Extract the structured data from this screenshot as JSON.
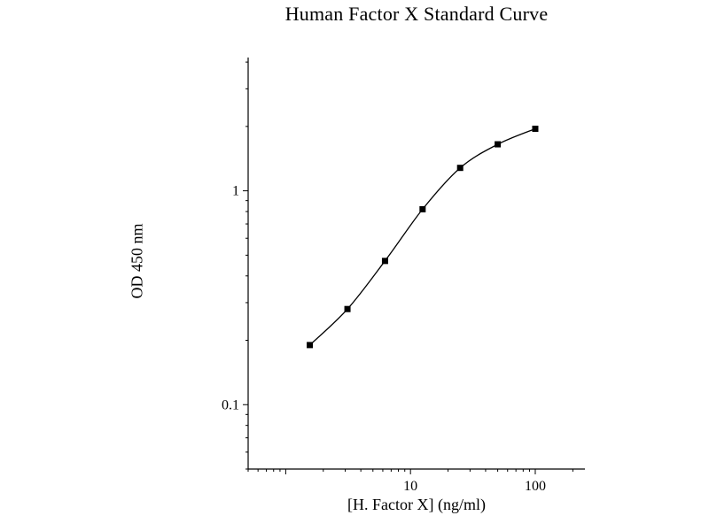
{
  "chart_data": {
    "type": "line",
    "title": "Human Factor X Standard Curve",
    "xlabel": "[H. Factor X] (ng/ml)",
    "ylabel": "OD 450 nm",
    "x_scale": "log",
    "y_scale": "log",
    "xlim": [
      0.5,
      250
    ],
    "ylim": [
      0.05,
      4.2
    ],
    "x": [
      1.56,
      3.125,
      6.25,
      12.5,
      25,
      50,
      100
    ],
    "y": [
      0.19,
      0.28,
      0.47,
      0.82,
      1.28,
      1.65,
      1.95
    ],
    "x_ticks": [
      {
        "value": 10,
        "label": "10"
      },
      {
        "value": 100,
        "label": "100"
      }
    ],
    "y_ticks": [
      {
        "value": 0.1,
        "label": "0.1"
      },
      {
        "value": 1,
        "label": "1"
      }
    ],
    "marker": "square",
    "marker_color": "#000000",
    "line_color": "#000000",
    "grid": false,
    "legend": "none"
  }
}
